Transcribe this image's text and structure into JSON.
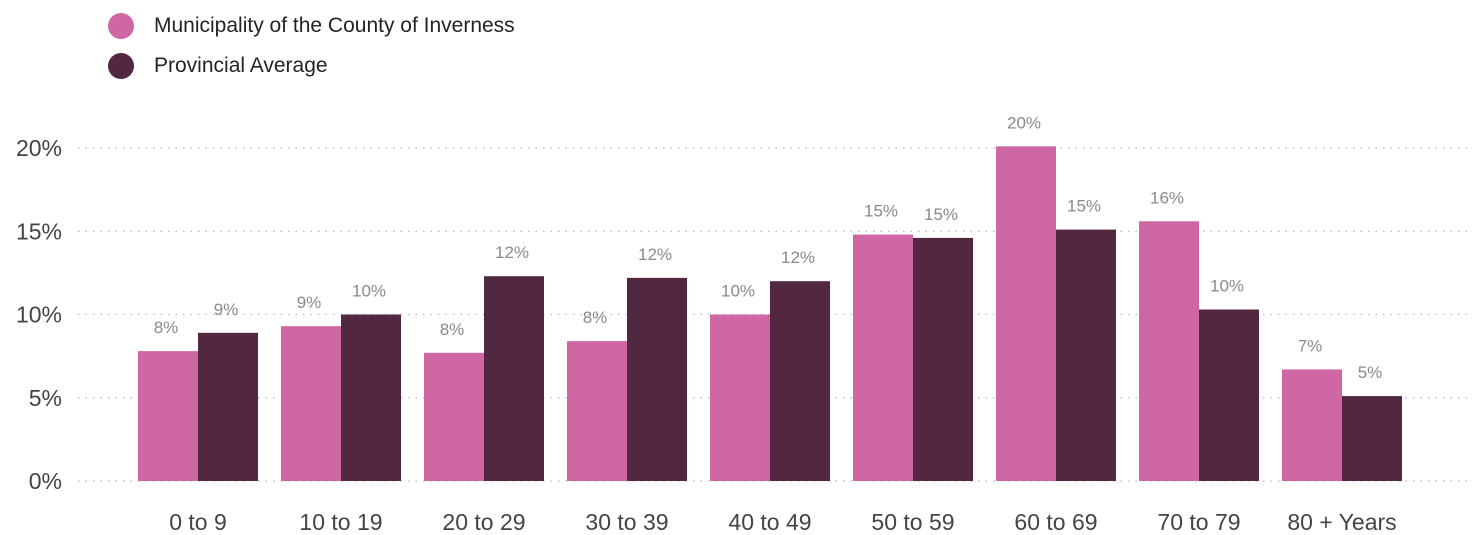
{
  "chart_data": {
    "type": "bar",
    "categories": [
      "0 to 9",
      "10 to 19",
      "20 to 29",
      "30 to 39",
      "40 to 49",
      "50 to 59",
      "60 to 69",
      "70 to 79",
      "80 + Years"
    ],
    "series": [
      {
        "name": "Municipality of the County of Inverness",
        "color": "#d067a5",
        "values": [
          7.8,
          9.3,
          7.7,
          8.4,
          10.0,
          14.8,
          20.1,
          15.6,
          6.7
        ],
        "labels": [
          "8%",
          "9%",
          "8%",
          "8%",
          "10%",
          "15%",
          "20%",
          "16%",
          "7%"
        ]
      },
      {
        "name": "Provincial Average",
        "color": "#512840",
        "values": [
          8.9,
          10.0,
          12.3,
          12.2,
          12.0,
          14.6,
          15.1,
          10.3,
          5.1
        ],
        "labels": [
          "9%",
          "10%",
          "12%",
          "12%",
          "12%",
          "15%",
          "15%",
          "10%",
          "5%"
        ]
      }
    ],
    "y_ticks": [
      {
        "value": 0,
        "label": "0%"
      },
      {
        "value": 5,
        "label": "5%"
      },
      {
        "value": 10,
        "label": "10%"
      },
      {
        "value": 15,
        "label": "15%"
      },
      {
        "value": 20,
        "label": "20%"
      }
    ],
    "ylim": [
      0,
      20
    ],
    "grid": true,
    "legend_position": "top-left",
    "title": "",
    "xlabel": "",
    "ylabel": ""
  }
}
